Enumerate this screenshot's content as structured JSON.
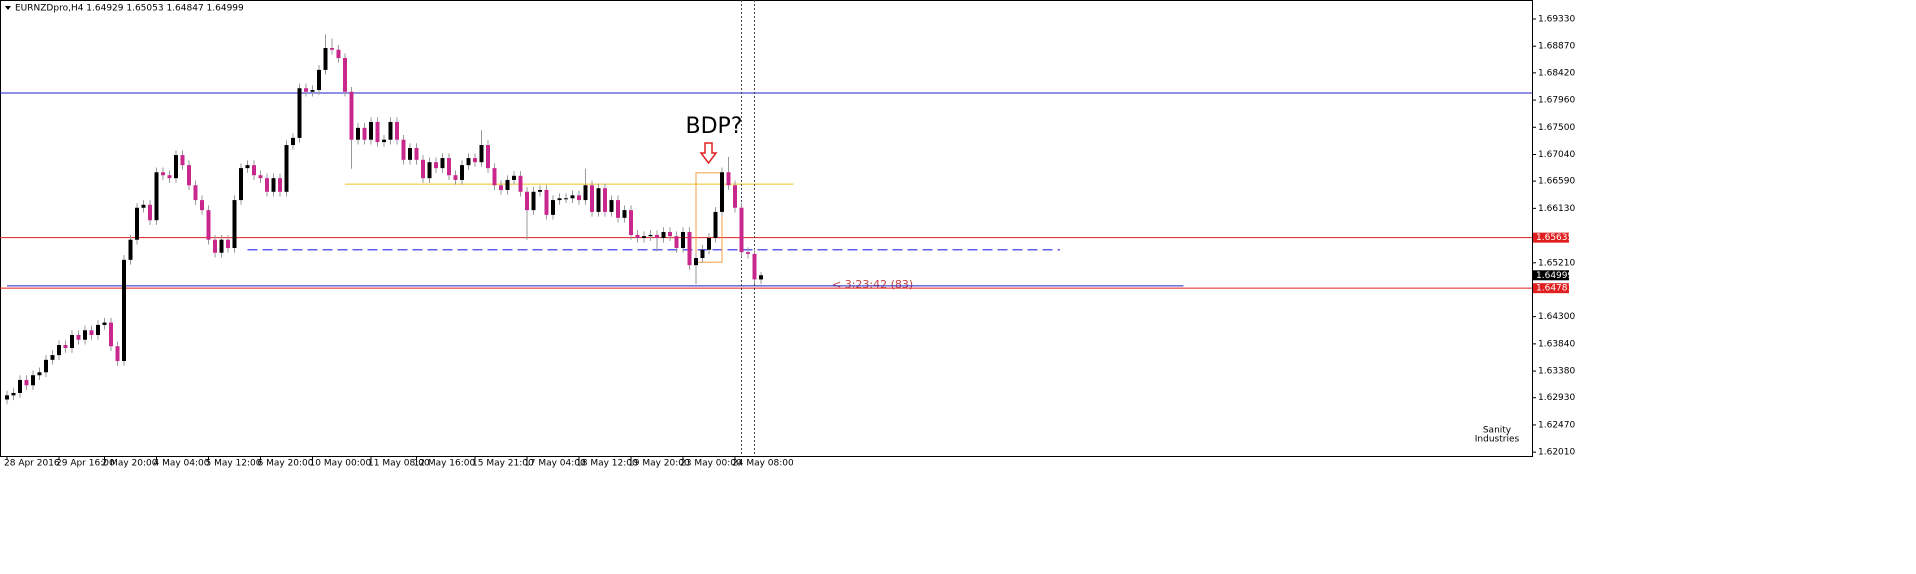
{
  "chart_data": {
    "type": "candlestick",
    "title": "EURNZDpro,H4  1.64929 1.65053 1.64847 1.64999",
    "up_color": "#000000",
    "down_color": "#c8288c",
    "categories": [
      "28 Apr 2016",
      null,
      null,
      null,
      null,
      null,
      null,
      null,
      "29 Apr 16:00",
      null,
      null,
      null,
      null,
      null,
      null,
      "2 May 20:00",
      null,
      null,
      null,
      null,
      null,
      null,
      null,
      "4 May 04:00",
      null,
      null,
      null,
      null,
      null,
      null,
      null,
      "5 May 12:00",
      null,
      null,
      null,
      null,
      null,
      null,
      null,
      "6 May 20:00",
      null,
      null,
      null,
      null,
      null,
      null,
      null,
      "10 May 00:00",
      null,
      null,
      null,
      null,
      null,
      null,
      null,
      null,
      "11 May 08:00",
      null,
      null,
      null,
      null,
      null,
      null,
      "12 May 16:00",
      null,
      null,
      null,
      null,
      null,
      null,
      null,
      null,
      "15 May 21:00",
      null,
      null,
      null,
      null,
      null,
      null,
      null,
      "17 May 04:00",
      null,
      null,
      null,
      null,
      null,
      null,
      null,
      "18 May 12:00",
      null,
      null,
      null,
      null,
      null,
      null,
      null,
      "19 May 20:00",
      null,
      null,
      null,
      null,
      null,
      null,
      null,
      "23 May 00:00",
      null,
      null,
      null,
      null,
      null,
      null,
      null,
      "24 May 08:00",
      null,
      null,
      null,
      null
    ],
    "open": [
      1.629,
      1.6297,
      1.6301,
      1.6323,
      1.6314,
      1.6331,
      1.6336,
      1.6357,
      1.6365,
      1.6382,
      1.6377,
      1.6399,
      1.6391,
      1.6407,
      1.6399,
      1.6416,
      1.642,
      1.638,
      1.6355,
      1.6526,
      1.656,
      1.6614,
      1.6619,
      1.6593,
      1.6674,
      1.6669,
      1.6664,
      1.6703,
      1.6686,
      1.6652,
      1.6627,
      1.661,
      1.656,
      1.6538,
      1.656,
      1.6546,
      1.6627,
      1.6681,
      1.6686,
      1.6669,
      1.6664,
      1.6641,
      1.6664,
      1.6641,
      1.672,
      1.6732,
      1.6816,
      1.681,
      1.6813,
      1.6847,
      1.6884,
      1.6881,
      1.6867,
      1.681,
      1.6729,
      1.6749,
      1.6729,
      1.6759,
      1.6725,
      1.6729,
      1.6759,
      1.6729,
      1.6695,
      1.6715,
      1.6695,
      1.6664,
      1.6691,
      1.6681,
      1.6698,
      1.6669,
      1.6661,
      1.6686,
      1.6698,
      1.6691,
      1.672,
      1.6681,
      1.6652,
      1.6644,
      1.6661,
      1.6668,
      1.6641,
      1.661,
      1.6641,
      1.6644,
      1.6602,
      1.6627,
      1.663,
      1.663,
      1.6635,
      1.6627,
      1.6652,
      1.6607,
      1.6647,
      1.6607,
      1.6627,
      1.6597,
      1.661,
      1.6568,
      1.6563,
      1.6566,
      1.6568,
      1.6563,
      1.6573,
      1.6566,
      1.6546,
      1.6573,
      1.6517,
      1.6529,
      1.6543,
      1.6563,
      1.6607,
      1.6674,
      1.6652,
      1.6614,
      1.6539,
      1.6536,
      1.64929
    ],
    "high": [
      1.6305,
      1.6309,
      1.6331,
      1.6331,
      1.6339,
      1.6344,
      1.6365,
      1.6373,
      1.639,
      1.639,
      1.6407,
      1.6407,
      1.6415,
      1.6415,
      1.6424,
      1.6428,
      1.6428,
      1.6388,
      1.6534,
      1.6568,
      1.6622,
      1.6627,
      1.6627,
      1.6682,
      1.6682,
      1.6677,
      1.6711,
      1.6711,
      1.6694,
      1.666,
      1.6635,
      1.6618,
      1.6568,
      1.6568,
      1.6568,
      1.6635,
      1.6689,
      1.6694,
      1.6694,
      1.6677,
      1.6672,
      1.6672,
      1.6672,
      1.6728,
      1.674,
      1.6824,
      1.6824,
      1.6821,
      1.6855,
      1.6907,
      1.69,
      1.6889,
      1.6875,
      1.6818,
      1.6757,
      1.6757,
      1.6767,
      1.6767,
      1.6737,
      1.6767,
      1.6767,
      1.6737,
      1.6723,
      1.6723,
      1.6703,
      1.6699,
      1.6699,
      1.6706,
      1.6706,
      1.6677,
      1.6694,
      1.6706,
      1.6706,
      1.6745,
      1.6728,
      1.6689,
      1.666,
      1.6669,
      1.6676,
      1.6676,
      1.6649,
      1.6649,
      1.6652,
      1.6652,
      1.6635,
      1.6638,
      1.6638,
      1.6643,
      1.6643,
      1.668,
      1.666,
      1.6655,
      1.6655,
      1.6635,
      1.6635,
      1.6618,
      1.6618,
      1.6576,
      1.6574,
      1.6576,
      1.6576,
      1.6581,
      1.6581,
      1.6574,
      1.6581,
      1.6581,
      1.6537,
      1.6551,
      1.6571,
      1.6615,
      1.6682,
      1.67,
      1.666,
      1.6622,
      1.6547,
      1.6544,
      1.65053
    ],
    "low": [
      1.6282,
      1.6289,
      1.6293,
      1.6306,
      1.6306,
      1.6323,
      1.6328,
      1.6349,
      1.6357,
      1.6369,
      1.6369,
      1.6383,
      1.6383,
      1.6391,
      1.6391,
      1.6408,
      1.6372,
      1.6347,
      1.6347,
      1.6518,
      1.6552,
      1.6606,
      1.6585,
      1.6585,
      1.6661,
      1.6656,
      1.6656,
      1.6678,
      1.6644,
      1.6619,
      1.6602,
      1.6552,
      1.653,
      1.653,
      1.6538,
      1.6538,
      1.6619,
      1.6673,
      1.6661,
      1.6656,
      1.6633,
      1.6633,
      1.6633,
      1.6633,
      1.6712,
      1.6724,
      1.6802,
      1.6802,
      1.6805,
      1.6839,
      1.6873,
      1.6859,
      1.6802,
      1.668,
      1.6721,
      1.6721,
      1.6721,
      1.6717,
      1.6717,
      1.6721,
      1.6721,
      1.6687,
      1.6687,
      1.6687,
      1.6656,
      1.6656,
      1.6673,
      1.6673,
      1.6661,
      1.6653,
      1.6653,
      1.6678,
      1.6683,
      1.6683,
      1.6673,
      1.6644,
      1.6636,
      1.6636,
      1.6653,
      1.6633,
      1.656,
      1.6602,
      1.6633,
      1.6594,
      1.6594,
      1.6619,
      1.6622,
      1.6622,
      1.6619,
      1.6619,
      1.6599,
      1.6599,
      1.6599,
      1.6599,
      1.6589,
      1.6589,
      1.656,
      1.6555,
      1.6555,
      1.6558,
      1.654,
      1.6555,
      1.6558,
      1.6538,
      1.6538,
      1.6509,
      1.6485,
      1.6521,
      1.6535,
      1.6555,
      1.6599,
      1.6644,
      1.6606,
      1.6531,
      1.6528,
      1.6485,
      1.64847
    ],
    "close": [
      1.6297,
      1.6301,
      1.6323,
      1.6314,
      1.6331,
      1.6336,
      1.6357,
      1.6365,
      1.6382,
      1.6377,
      1.6399,
      1.6391,
      1.6407,
      1.6399,
      1.6416,
      1.642,
      1.638,
      1.6355,
      1.6526,
      1.656,
      1.6614,
      1.6619,
      1.6593,
      1.6674,
      1.6669,
      1.6664,
      1.6703,
      1.6686,
      1.6652,
      1.6627,
      1.661,
      1.656,
      1.6538,
      1.656,
      1.6546,
      1.6627,
      1.6681,
      1.6686,
      1.6669,
      1.6664,
      1.6641,
      1.6664,
      1.6641,
      1.672,
      1.6732,
      1.6816,
      1.681,
      1.6813,
      1.6847,
      1.6884,
      1.6881,
      1.6867,
      1.681,
      1.6729,
      1.6749,
      1.6729,
      1.6759,
      1.6725,
      1.6729,
      1.6759,
      1.6729,
      1.6695,
      1.6715,
      1.6695,
      1.6664,
      1.6691,
      1.6681,
      1.6698,
      1.6669,
      1.6661,
      1.6686,
      1.6698,
      1.6691,
      1.672,
      1.6681,
      1.6652,
      1.6644,
      1.6661,
      1.6668,
      1.6641,
      1.661,
      1.6641,
      1.6644,
      1.6602,
      1.6627,
      1.663,
      1.663,
      1.6635,
      1.6627,
      1.6652,
      1.6607,
      1.6647,
      1.6607,
      1.6627,
      1.6597,
      1.661,
      1.6568,
      1.6563,
      1.6566,
      1.6568,
      1.6563,
      1.6573,
      1.6566,
      1.6546,
      1.6573,
      1.6517,
      1.6529,
      1.6543,
      1.6563,
      1.6607,
      1.6674,
      1.6652,
      1.6614,
      1.6539,
      1.6536,
      1.6493,
      1.64999
    ],
    "ylim": [
      1.61945,
      1.69651
    ],
    "yticks": [
      {
        "value": 1.6933,
        "label": "1.69330"
      },
      {
        "value": 1.6887,
        "label": "1.68870"
      },
      {
        "value": 1.6842,
        "label": "1.68420"
      },
      {
        "value": 1.6796,
        "label": "1.67960"
      },
      {
        "value": 1.675,
        "label": "1.67500"
      },
      {
        "value": 1.6704,
        "label": "1.67040"
      },
      {
        "value": 1.6659,
        "label": "1.66590"
      },
      {
        "value": 1.6613,
        "label": "1.66130"
      },
      {
        "value": 1.6521,
        "label": "1.65210"
      },
      {
        "value": 1.643,
        "label": "1.64300"
      },
      {
        "value": 1.6384,
        "label": "1.63840"
      },
      {
        "value": 1.6338,
        "label": "1.63380"
      },
      {
        "value": 1.6293,
        "label": "1.62930"
      },
      {
        "value": 1.6247,
        "label": "1.62470"
      },
      {
        "value": 1.6201,
        "label": "1.62010"
      }
    ],
    "grid": false,
    "hlines": [
      {
        "value": 1.6808,
        "color": "#2020c8"
      },
      {
        "value": 1.65635,
        "color": "#e02020",
        "axis_label": true
      },
      {
        "value": 1.64781,
        "color": "#e02020",
        "axis_label": true
      }
    ],
    "segments": [
      {
        "value": 1.6654,
        "start": 52,
        "end": 121,
        "color": "#f0c020",
        "dashed": false
      },
      {
        "value": 1.6543,
        "start": 37,
        "end": 162,
        "color": "#6060f0",
        "dashed": true
      },
      {
        "value": 1.6482,
        "start": 0,
        "end": 181,
        "color": "#2020c8",
        "dashed": false
      }
    ],
    "vlines": [
      113,
      115
    ],
    "box": {
      "start": 106,
      "end": 110,
      "top": 1.6673,
      "bottom": 1.6522,
      "color": "#f0a040"
    },
    "current_price": 1.64999,
    "annotation": "BDP?",
    "timer": "< 3:23:42 (83)",
    "watermark": [
      "Sanity",
      "Industries"
    ]
  }
}
